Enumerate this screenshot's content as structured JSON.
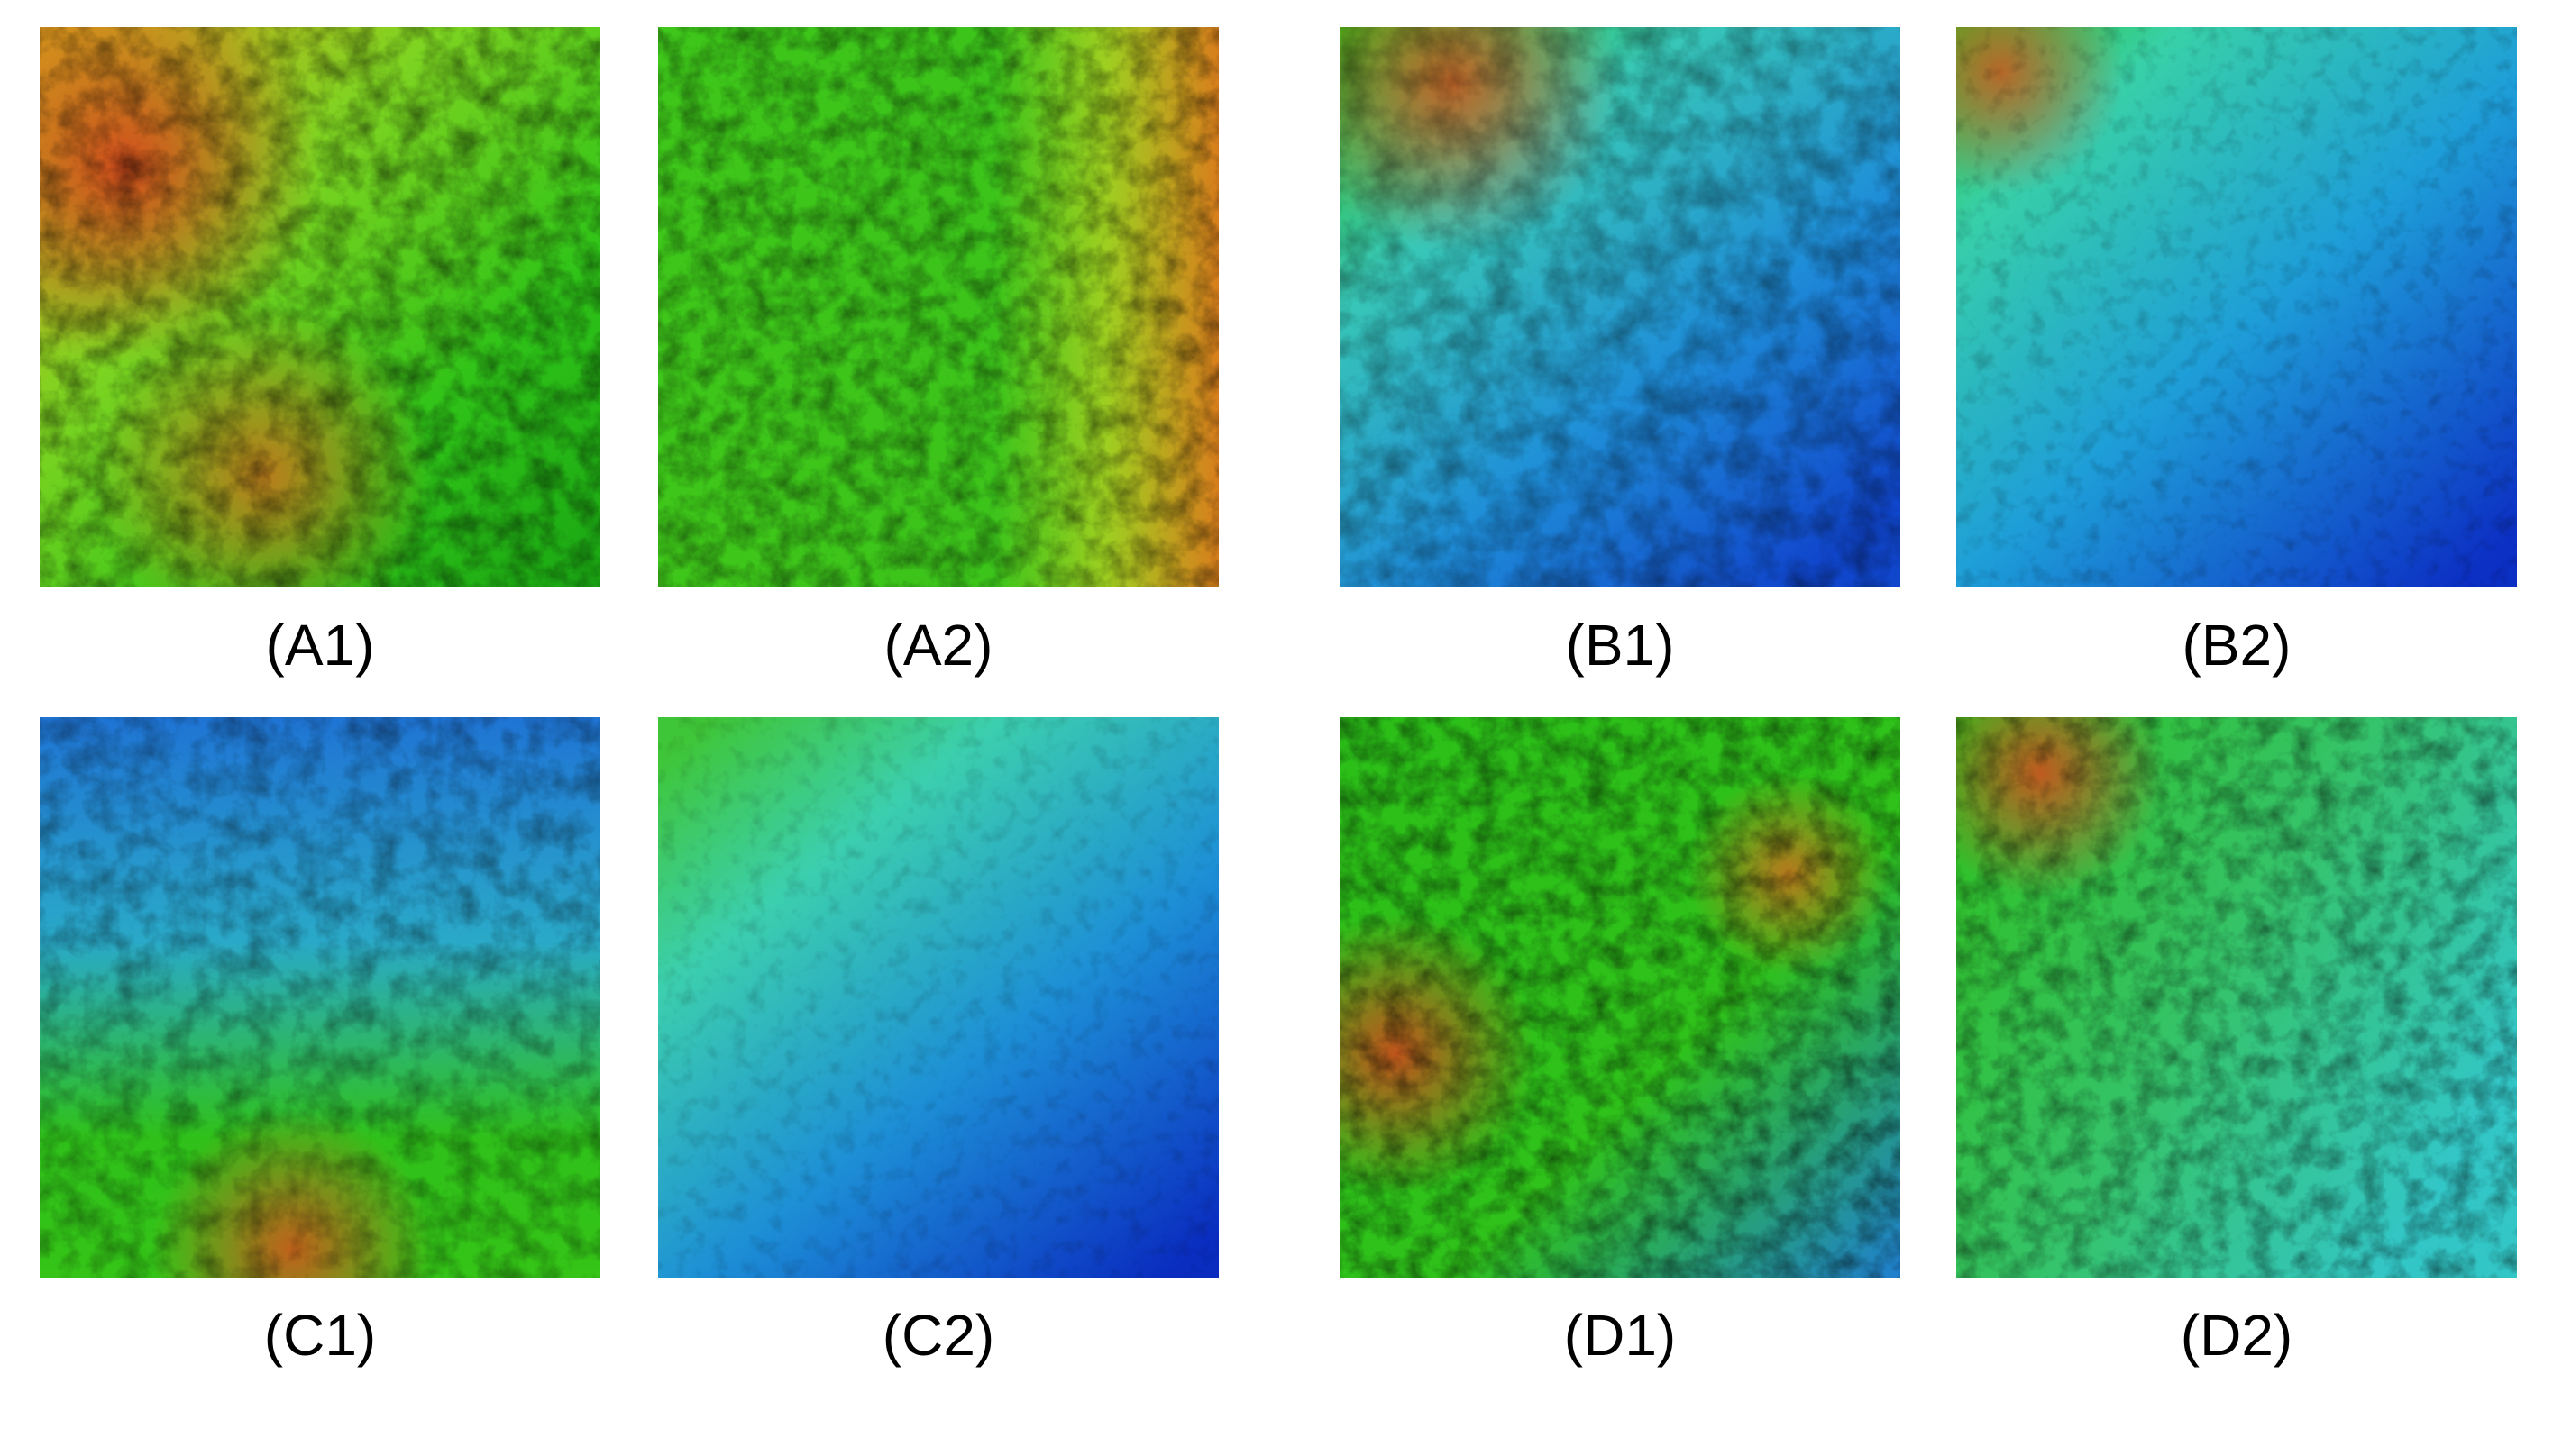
{
  "figure": {
    "panels": [
      {
        "id": "A1",
        "label": "(A1)",
        "terrain": "mountainous",
        "palette": "green-yellow-red"
      },
      {
        "id": "A2",
        "label": "(A2)",
        "terrain": "plateau-with-eastern-ridges",
        "palette": "green-yellow-red"
      },
      {
        "id": "B1",
        "label": "(B1)",
        "terrain": "hills-and-basin",
        "palette": "blue-cyan-green-red"
      },
      {
        "id": "B2",
        "label": "(B2)",
        "terrain": "alluvial-plain",
        "palette": "blue-cyan-green"
      },
      {
        "id": "C1",
        "label": "(C1)",
        "terrain": "dissected-valleys",
        "palette": "blue-green-red"
      },
      {
        "id": "C2",
        "label": "(C2)",
        "terrain": "smooth-plain",
        "palette": "blue-cyan-green"
      },
      {
        "id": "D1",
        "label": "(D1)",
        "terrain": "rugged-hills",
        "palette": "green-red-blue"
      },
      {
        "id": "D2",
        "label": "(D2)",
        "terrain": "hills-and-valley",
        "palette": "green-cyan-red"
      }
    ]
  },
  "colors": {
    "low_elevation": "#0a3fd0",
    "mid_low_elevation": "#27c6c9",
    "mid_elevation": "#22c414",
    "high_elevation": "#e8c41c",
    "peak_elevation": "#d8401c",
    "caption_text": "#000000",
    "background": "#ffffff"
  }
}
